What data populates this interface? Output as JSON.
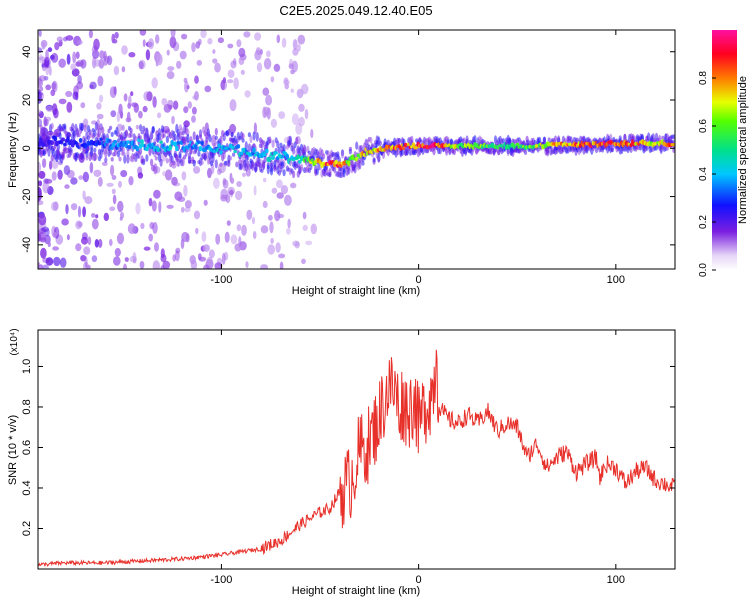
{
  "figure": {
    "title": "C2E5.2025.049.12.40.E05"
  },
  "chart_data": [
    {
      "type": "heatmap",
      "title": "C2E5.2025.049.12.40.E05",
      "xlabel": "Height of straight line (km)",
      "ylabel": "Frequency (Hz)",
      "xlim": [
        -193,
        130
      ],
      "ylim": [
        -50,
        49
      ],
      "xticks": [
        -100,
        0,
        100
      ],
      "yticks": [
        -40,
        -20,
        0,
        20,
        40
      ],
      "colorbar": {
        "label": "Normalized spectral amplitude",
        "range": [
          0,
          1
        ],
        "ticks": [
          "0.0",
          "0.2",
          "0.4",
          "0.6",
          "0.8"
        ],
        "colormap": "rainbow (white-violet, blue, cyan, green, yellow, red, magenta)"
      },
      "ridge": {
        "x": [
          -190,
          -170,
          -150,
          -130,
          -110,
          -90,
          -75,
          -60,
          -50,
          -40,
          -35,
          -30,
          -25,
          -20,
          -15,
          -10,
          -5,
          0,
          10,
          20,
          40,
          60,
          80,
          90,
          100,
          110,
          120,
          130
        ],
        "frequency": [
          3,
          2,
          2,
          1,
          1,
          -1,
          -3,
          -4,
          -6,
          -7,
          -5,
          -3,
          -1,
          -0.5,
          0,
          0.5,
          1,
          1,
          1,
          1,
          1,
          1,
          1.5,
          1.5,
          2,
          2,
          2,
          2
        ],
        "amplitude": [
          0.25,
          0.3,
          0.4,
          0.45,
          0.4,
          0.45,
          0.45,
          0.5,
          0.9,
          0.95,
          0.7,
          0.75,
          0.8,
          0.85,
          0.9,
          0.95,
          0.9,
          0.9,
          0.95,
          0.7,
          0.6,
          0.7,
          0.9,
          0.95,
          0.9,
          0.85,
          0.8,
          0.9
        ]
      }
    },
    {
      "type": "line",
      "xlabel": "Height of straight line (km)",
      "ylabel": "SNR (10 * v/v)",
      "y_multiplier": "(x10⁴)",
      "xlim": [
        -193,
        130
      ],
      "ylim": [
        0,
        1.18
      ],
      "xticks": [
        -100,
        0,
        100
      ],
      "yticks": [
        0.2,
        0.4,
        0.6,
        0.8,
        1.0
      ],
      "ytick_labels": [
        "0.2",
        "0.4",
        "0.6",
        "0.8",
        "1.0"
      ],
      "series": [
        {
          "color": "#e8302a",
          "x": [
            -193,
            -180,
            -160,
            -140,
            -120,
            -100,
            -80,
            -70,
            -60,
            -50,
            -45,
            -40,
            -35,
            -30,
            -25,
            -20,
            -17,
            -15,
            -12,
            -10,
            -8,
            -5,
            -2,
            0,
            3,
            6,
            8,
            9,
            10,
            12,
            15,
            20,
            25,
            30,
            35,
            40,
            45,
            50,
            55,
            60,
            65,
            70,
            75,
            80,
            85,
            90,
            92,
            95,
            100,
            105,
            110,
            115,
            120,
            125,
            130
          ],
          "y": [
            0.02,
            0.03,
            0.03,
            0.04,
            0.05,
            0.07,
            0.1,
            0.14,
            0.22,
            0.28,
            0.3,
            0.38,
            0.42,
            0.58,
            0.62,
            0.75,
            0.85,
            0.9,
            0.88,
            0.8,
            0.82,
            0.78,
            0.85,
            0.7,
            0.8,
            0.85,
            0.92,
            1.1,
            0.82,
            0.78,
            0.74,
            0.72,
            0.76,
            0.72,
            0.78,
            0.68,
            0.72,
            0.7,
            0.55,
            0.62,
            0.5,
            0.55,
            0.58,
            0.48,
            0.52,
            0.55,
            0.45,
            0.52,
            0.5,
            0.42,
            0.48,
            0.5,
            0.44,
            0.42,
            0.4
          ]
        }
      ]
    }
  ]
}
